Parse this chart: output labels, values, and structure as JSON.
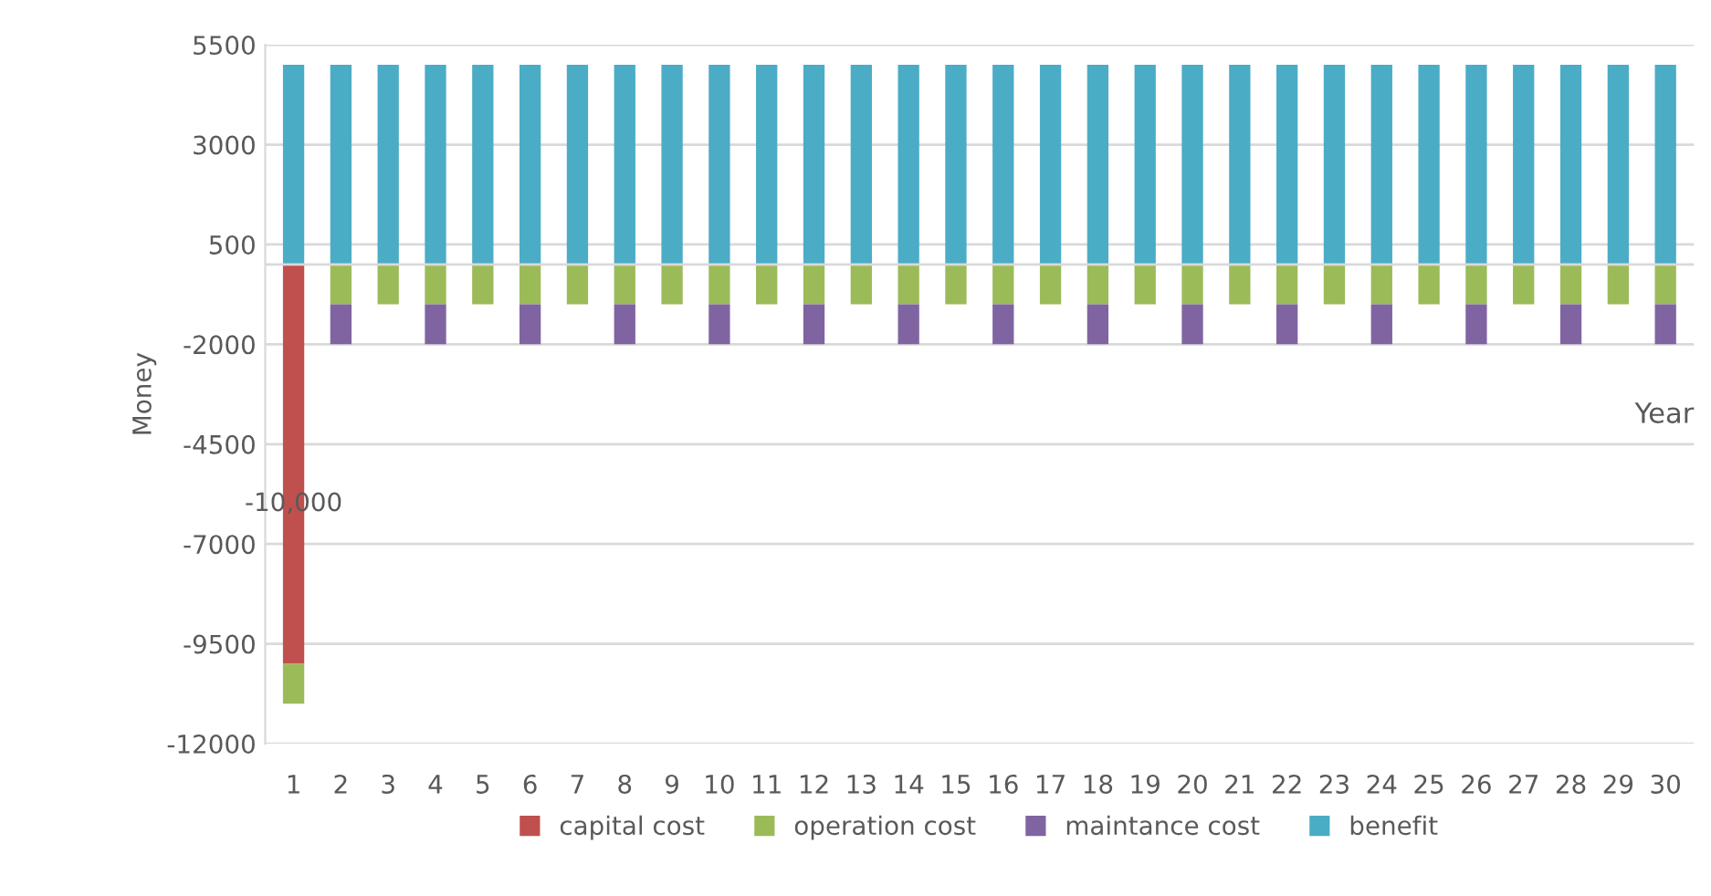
{
  "chart_data": {
    "type": "bar",
    "stacked": true,
    "xlabel": "Year",
    "ylabel": "Money",
    "categories": [
      "1",
      "2",
      "3",
      "4",
      "5",
      "6",
      "7",
      "8",
      "9",
      "10",
      "11",
      "12",
      "13",
      "14",
      "15",
      "16",
      "17",
      "18",
      "19",
      "20",
      "21",
      "22",
      "23",
      "24",
      "25",
      "26",
      "27",
      "28",
      "29",
      "30"
    ],
    "series": [
      {
        "name": "capital cost",
        "color": "#c0504d",
        "values": [
          -10000,
          0,
          0,
          0,
          0,
          0,
          0,
          0,
          0,
          0,
          0,
          0,
          0,
          0,
          0,
          0,
          0,
          0,
          0,
          0,
          0,
          0,
          0,
          0,
          0,
          0,
          0,
          0,
          0,
          0
        ],
        "value_labels": [
          "-10,000",
          null,
          null,
          null,
          null,
          null,
          null,
          null,
          null,
          null,
          null,
          null,
          null,
          null,
          null,
          null,
          null,
          null,
          null,
          null,
          null,
          null,
          null,
          null,
          null,
          null,
          null,
          null,
          null,
          null
        ]
      },
      {
        "name": "operation cost",
        "color": "#9bbb59",
        "values": [
          -1000,
          -1000,
          -1000,
          -1000,
          -1000,
          -1000,
          -1000,
          -1000,
          -1000,
          -1000,
          -1000,
          -1000,
          -1000,
          -1000,
          -1000,
          -1000,
          -1000,
          -1000,
          -1000,
          -1000,
          -1000,
          -1000,
          -1000,
          -1000,
          -1000,
          -1000,
          -1000,
          -1000,
          -1000,
          -1000
        ]
      },
      {
        "name": "maintance cost",
        "color": "#8064a2",
        "values": [
          0,
          -1000,
          0,
          -1000,
          0,
          -1000,
          0,
          -1000,
          0,
          -1000,
          0,
          -1000,
          0,
          -1000,
          0,
          -1000,
          0,
          -1000,
          0,
          -1000,
          0,
          -1000,
          0,
          -1000,
          0,
          -1000,
          0,
          -1000,
          0,
          -1000
        ]
      },
      {
        "name": "benefit",
        "color": "#4bacc6",
        "values": [
          5000,
          5000,
          5000,
          5000,
          5000,
          5000,
          5000,
          5000,
          5000,
          5000,
          5000,
          5000,
          5000,
          5000,
          5000,
          5000,
          5000,
          5000,
          5000,
          5000,
          5000,
          5000,
          5000,
          5000,
          5000,
          5000,
          5000,
          5000,
          5000,
          5000
        ]
      }
    ],
    "ylim": [
      -12000,
      5500
    ],
    "yticks": [
      -12000,
      -9500,
      -7000,
      -4500,
      -2000,
      500,
      3000,
      5500
    ],
    "grid": "y",
    "legend": "bottom"
  }
}
